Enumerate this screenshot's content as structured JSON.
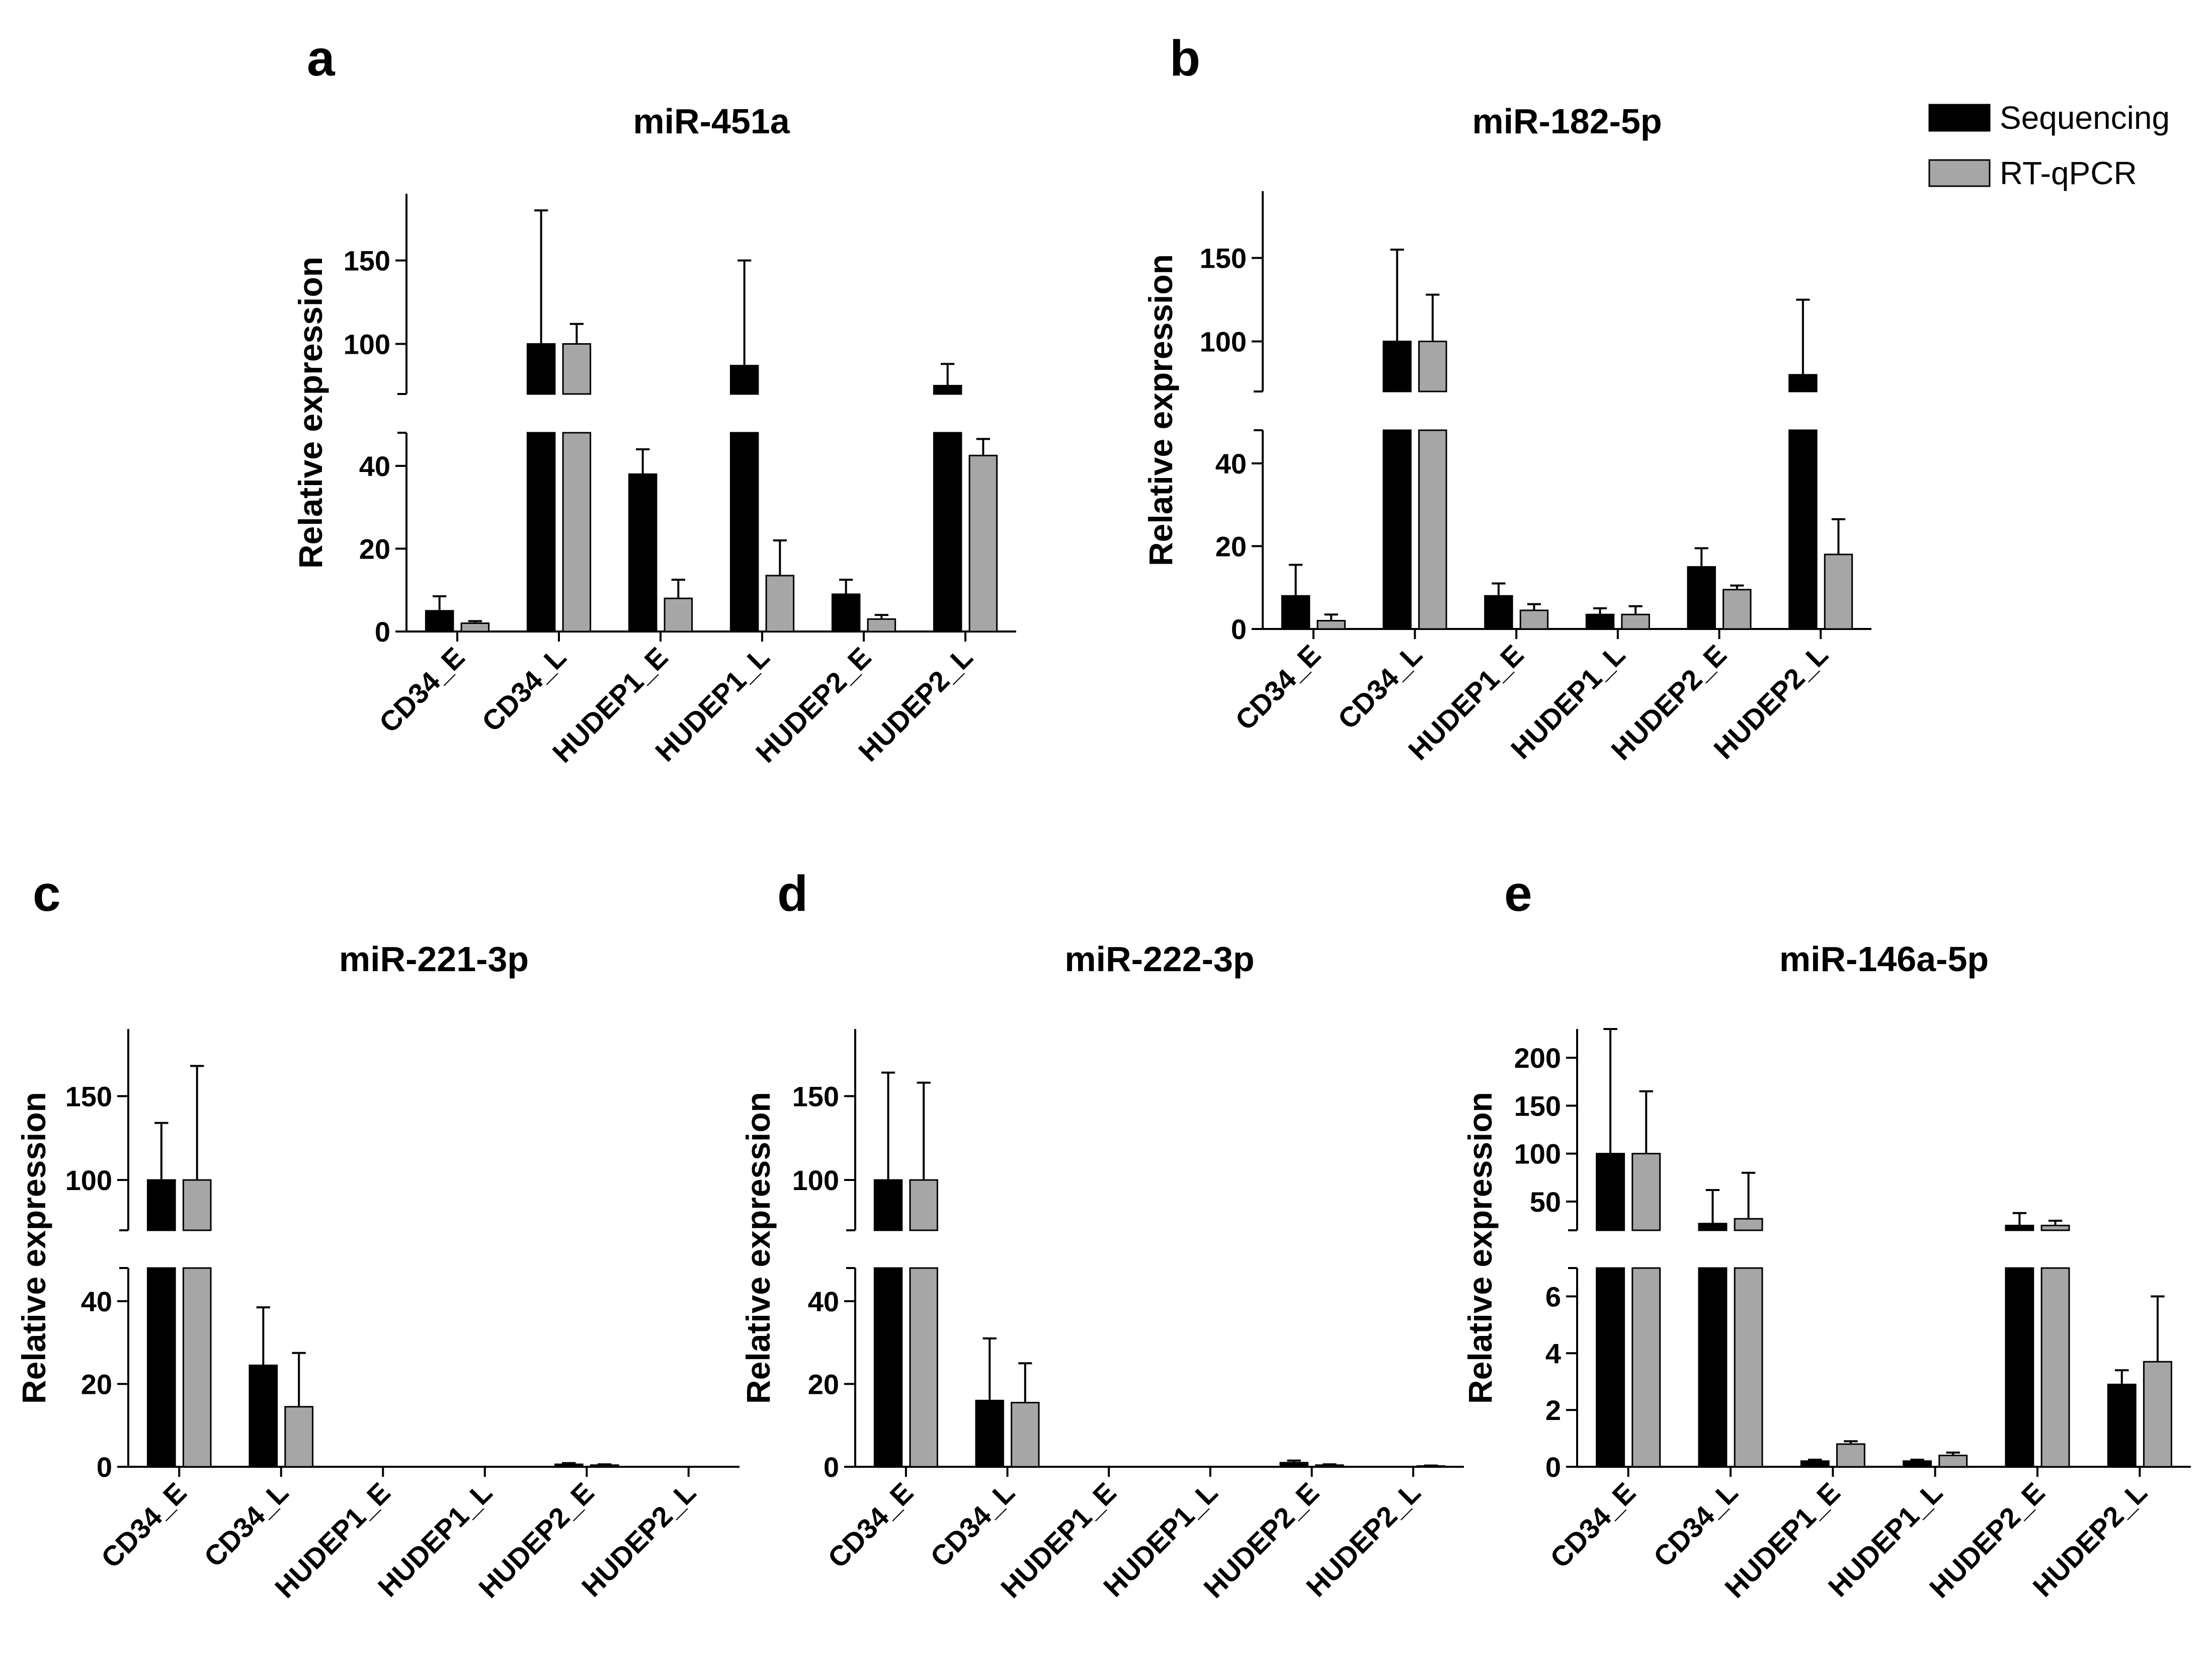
{
  "figure": {
    "legend": [
      {
        "label": "Sequencing",
        "color": "#000000"
      },
      {
        "label": "RT-qPCR",
        "color": "#a6a6a6"
      }
    ]
  },
  "chart_data": [
    {
      "panel": "a",
      "type": "bar",
      "title": "miR-451a",
      "ylabel": "Relative expression",
      "categories": [
        "CD34_E",
        "CD34_L",
        "HUDEP1_E",
        "HUDEP1_L",
        "HUDEP2_E",
        "HUDEP2_L"
      ],
      "series": [
        {
          "name": "Sequencing",
          "values": [
            5,
            100,
            38,
            87,
            9,
            75
          ],
          "errors": [
            3.5,
            80,
            6,
            63,
            3.5,
            13
          ]
        },
        {
          "name": "RT-qPCR",
          "values": [
            2,
            100,
            8,
            13.5,
            3,
            42.5
          ],
          "errors": [
            0.5,
            12,
            4.5,
            8.5,
            1,
            4
          ]
        }
      ],
      "broken_axis": {
        "lower": {
          "ylim": [
            0,
            48
          ],
          "ticks": [
            0,
            20,
            40
          ]
        },
        "upper": {
          "ylim": [
            70,
            190
          ],
          "ticks": [
            100,
            150
          ]
        }
      }
    },
    {
      "panel": "b",
      "type": "bar",
      "title": "miR-182-5p",
      "ylabel": "Relative expression",
      "categories": [
        "CD34_E",
        "CD34_L",
        "HUDEP1_E",
        "HUDEP1_L",
        "HUDEP2_E",
        "HUDEP2_L"
      ],
      "series": [
        {
          "name": "Sequencing",
          "values": [
            8,
            100,
            8,
            3.5,
            15,
            80
          ],
          "errors": [
            7.5,
            55,
            3,
            1.5,
            4.5,
            45
          ]
        },
        {
          "name": "RT-qPCR",
          "values": [
            2,
            100,
            4.5,
            3.5,
            9.5,
            18
          ],
          "errors": [
            1.5,
            28,
            1.5,
            2,
            1,
            8.5
          ]
        }
      ],
      "broken_axis": {
        "lower": {
          "ylim": [
            0,
            48
          ],
          "ticks": [
            0,
            20,
            40
          ]
        },
        "upper": {
          "ylim": [
            70,
            190
          ],
          "ticks": [
            100,
            150
          ]
        }
      }
    },
    {
      "panel": "c",
      "type": "bar",
      "title": "miR-221-3p",
      "ylabel": "Relative expression",
      "categories": [
        "CD34_E",
        "CD34_L",
        "HUDEP1_E",
        "HUDEP1_L",
        "HUDEP2_E",
        "HUDEP2_L"
      ],
      "series": [
        {
          "name": "Sequencing",
          "values": [
            100,
            24.5,
            0,
            0,
            0.6,
            0
          ],
          "errors": [
            34,
            14,
            0,
            0,
            0.3,
            0
          ]
        },
        {
          "name": "RT-qPCR",
          "values": [
            100,
            14.5,
            0,
            0,
            0.4,
            0
          ],
          "errors": [
            68,
            13,
            0,
            0,
            0.2,
            0
          ]
        }
      ],
      "broken_axis": {
        "lower": {
          "ylim": [
            0,
            48
          ],
          "ticks": [
            0,
            20,
            40
          ]
        },
        "upper": {
          "ylim": [
            70,
            190
          ],
          "ticks": [
            100,
            150
          ]
        }
      }
    },
    {
      "panel": "d",
      "type": "bar",
      "title": "miR-222-3p",
      "ylabel": "Relative expression",
      "categories": [
        "CD34_E",
        "CD34_L",
        "HUDEP1_E",
        "HUDEP1_L",
        "HUDEP2_E",
        "HUDEP2_L"
      ],
      "series": [
        {
          "name": "Sequencing",
          "values": [
            100,
            16,
            0,
            0,
            1,
            0
          ],
          "errors": [
            64,
            15,
            0,
            0,
            0.5,
            0
          ]
        },
        {
          "name": "RT-qPCR",
          "values": [
            100,
            15.5,
            0,
            0,
            0.4,
            0.2
          ],
          "errors": [
            58,
            9.5,
            0,
            0,
            0.2,
            0.1
          ]
        }
      ],
      "broken_axis": {
        "lower": {
          "ylim": [
            0,
            48
          ],
          "ticks": [
            0,
            20,
            40
          ]
        },
        "upper": {
          "ylim": [
            70,
            190
          ],
          "ticks": [
            100,
            150
          ]
        }
      }
    },
    {
      "panel": "e",
      "type": "bar",
      "title": "miR-146a-5p",
      "ylabel": "Relative expression",
      "categories": [
        "CD34_E",
        "CD34_L",
        "HUDEP1_E",
        "HUDEP1_L",
        "HUDEP2_E",
        "HUDEP2_L"
      ],
      "series": [
        {
          "name": "Sequencing",
          "values": [
            100,
            27,
            0.2,
            0.2,
            25,
            2.9
          ],
          "errors": [
            130,
            35,
            0.05,
            0.05,
            13,
            0.5
          ]
        },
        {
          "name": "RT-qPCR",
          "values": [
            100,
            32,
            0.8,
            0.4,
            25,
            3.7
          ],
          "errors": [
            65,
            48,
            0.1,
            0.1,
            5,
            2.3
          ]
        }
      ],
      "broken_axis": {
        "lower": {
          "ylim": [
            0,
            7
          ],
          "ticks": [
            0,
            2,
            4,
            6
          ]
        },
        "upper": {
          "ylim": [
            20,
            230
          ],
          "ticks": [
            50,
            100,
            150,
            200
          ]
        }
      }
    }
  ]
}
